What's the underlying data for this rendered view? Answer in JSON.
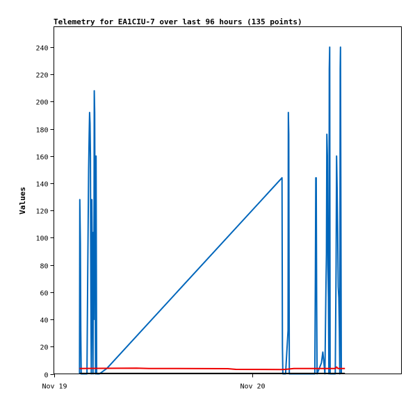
{
  "chart_data": {
    "type": "line",
    "title": "Telemetry for EA1CIU-7 over last 96 hours (135 points)",
    "xlabel": "",
    "ylabel": "Values",
    "ylim": [
      0,
      255
    ],
    "yticks": [
      0,
      20,
      40,
      60,
      80,
      100,
      120,
      140,
      160,
      180,
      200,
      220,
      240
    ],
    "xlim": [
      "2024-11-19T00:00",
      "2024-11-20T18:00"
    ],
    "xticks": [
      {
        "label": "Nov 19",
        "t": "2024-11-19T00:00"
      },
      {
        "label": "Nov 20",
        "t": "2024-11-20T00:00"
      }
    ],
    "grid": false,
    "legend": "none",
    "series": [
      {
        "color": "#0066bb",
        "points": [
          [
            "2024-11-19T03:06",
            0
          ],
          [
            "2024-11-19T03:08",
            128
          ],
          [
            "2024-11-19T03:12",
            96
          ],
          [
            "2024-11-19T03:15",
            32
          ],
          [
            "2024-11-19T03:18",
            0
          ],
          [
            "2024-11-19T04:00",
            0
          ],
          [
            "2024-11-19T04:06",
            80
          ],
          [
            "2024-11-19T04:12",
            150
          ],
          [
            "2024-11-19T04:16",
            176
          ],
          [
            "2024-11-19T04:19",
            192
          ],
          [
            "2024-11-19T04:22",
            184
          ],
          [
            "2024-11-19T04:25",
            160
          ],
          [
            "2024-11-19T04:28",
            56
          ],
          [
            "2024-11-19T04:31",
            0
          ],
          [
            "2024-11-19T04:35",
            128
          ],
          [
            "2024-11-19T04:40",
            64
          ],
          [
            "2024-11-19T04:44",
            0
          ],
          [
            "2024-11-19T04:47",
            104
          ],
          [
            "2024-11-19T04:50",
            40
          ],
          [
            "2024-11-19T04:53",
            208
          ],
          [
            "2024-11-19T04:56",
            192
          ],
          [
            "2024-11-19T04:59",
            96
          ],
          [
            "2024-11-19T05:02",
            0
          ],
          [
            "2024-11-19T05:06",
            160
          ],
          [
            "2024-11-19T05:10",
            0
          ],
          [
            "2024-11-19T05:30",
            0
          ],
          [
            "2024-11-19T06:24",
            4
          ],
          [
            "2024-11-20T03:34",
            144
          ],
          [
            "2024-11-20T03:37",
            20
          ],
          [
            "2024-11-20T03:40",
            0
          ],
          [
            "2024-11-20T04:00",
            0
          ],
          [
            "2024-11-20T04:18",
            32
          ],
          [
            "2024-11-20T04:20",
            192
          ],
          [
            "2024-11-20T04:23",
            176
          ],
          [
            "2024-11-20T04:27",
            0
          ],
          [
            "2024-11-20T07:32",
            0
          ],
          [
            "2024-11-20T07:36",
            72
          ],
          [
            "2024-11-20T07:39",
            144
          ],
          [
            "2024-11-20T07:42",
            144
          ],
          [
            "2024-11-20T07:45",
            56
          ],
          [
            "2024-11-20T07:48",
            0
          ],
          [
            "2024-11-20T08:20",
            8
          ],
          [
            "2024-11-20T08:30",
            16
          ],
          [
            "2024-11-20T08:38",
            8
          ],
          [
            "2024-11-20T08:45",
            0
          ],
          [
            "2024-11-20T08:52",
            60
          ],
          [
            "2024-11-20T08:56",
            88
          ],
          [
            "2024-11-20T08:59",
            176
          ],
          [
            "2024-11-20T09:03",
            160
          ],
          [
            "2024-11-20T09:07",
            80
          ],
          [
            "2024-11-20T09:11",
            56
          ],
          [
            "2024-11-20T09:14",
            0
          ],
          [
            "2024-11-20T09:17",
            224
          ],
          [
            "2024-11-20T09:20",
            240
          ],
          [
            "2024-11-20T09:23",
            0
          ],
          [
            "2024-11-20T10:00",
            0
          ],
          [
            "2024-11-20T10:06",
            80
          ],
          [
            "2024-11-20T10:10",
            160
          ],
          [
            "2024-11-20T10:14",
            136
          ],
          [
            "2024-11-20T10:18",
            104
          ],
          [
            "2024-11-20T10:22",
            64
          ],
          [
            "2024-11-20T10:26",
            56
          ],
          [
            "2024-11-20T10:30",
            32
          ],
          [
            "2024-11-20T10:33",
            0
          ],
          [
            "2024-11-20T10:36",
            224
          ],
          [
            "2024-11-20T10:38",
            240
          ],
          [
            "2024-11-20T10:41",
            120
          ],
          [
            "2024-11-20T10:44",
            0
          ]
        ]
      },
      {
        "color": "#ee0000",
        "points": [
          [
            "2024-11-19T03:06",
            4
          ],
          [
            "2024-11-19T10:00",
            4.2
          ],
          [
            "2024-11-19T11:30",
            4
          ],
          [
            "2024-11-19T21:00",
            3.8
          ],
          [
            "2024-11-19T22:00",
            3.3
          ],
          [
            "2024-11-20T03:30",
            3.2
          ],
          [
            "2024-11-20T04:00",
            3.3
          ],
          [
            "2024-11-20T05:00",
            4
          ],
          [
            "2024-11-20T10:00",
            4
          ],
          [
            "2024-11-20T10:10",
            5
          ],
          [
            "2024-11-20T10:20",
            4
          ],
          [
            "2024-11-20T11:10",
            4
          ]
        ]
      },
      {
        "color": "#000000",
        "points": [
          [
            "2024-11-19T03:06",
            0.3
          ],
          [
            "2024-11-20T11:10",
            0.3
          ]
        ]
      }
    ]
  }
}
